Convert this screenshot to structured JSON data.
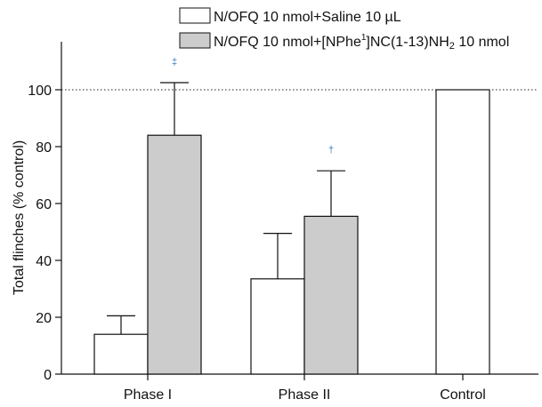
{
  "chart_data": {
    "type": "bar",
    "categories": [
      "Phase I",
      "Phase II",
      "Control"
    ],
    "series": [
      {
        "name": "N/OFQ 10 nmol+Saline 10 µL",
        "values": [
          14,
          33.5,
          100
        ],
        "errors": [
          6.5,
          16,
          null
        ],
        "color": "#ffffff"
      },
      {
        "name": "N/OFQ 10 nmol+[NPhe1]NC(1-13)NH2 10 nmol",
        "name_parts": {
          "before": "N/OFQ 10 nmol+[NPhe",
          "sup": "1",
          "middle": "]NC(1-13)NH",
          "sub": "2",
          "after": " 10 nmol"
        },
        "values": [
          84,
          55.5,
          null
        ],
        "errors": [
          18.5,
          16,
          null
        ],
        "color": "#cccccc"
      }
    ],
    "markers": [
      {
        "category": "Phase I",
        "series": 1,
        "symbol": "‡"
      },
      {
        "category": "Phase II",
        "series": 1,
        "symbol": "†"
      }
    ],
    "title": "",
    "xlabel": "",
    "ylabel": "Total flinches (% control)",
    "ylim": [
      0,
      120
    ],
    "yticks": [
      0,
      20,
      40,
      60,
      80,
      100
    ],
    "reference_line": 100,
    "legend_position": "top-right"
  }
}
